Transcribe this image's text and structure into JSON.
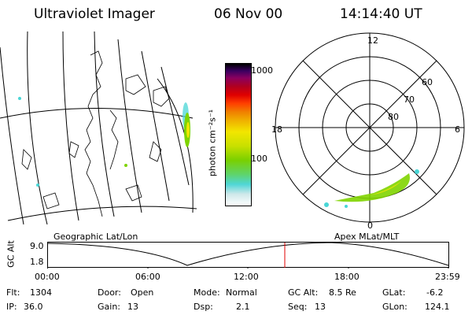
{
  "header": {
    "instrument": "Ultraviolet Imager",
    "date": "06 Nov 00",
    "time": "14:14:40 UT"
  },
  "colorbar": {
    "unit_label": "photon cm⁻²s⁻¹",
    "ticks": [
      "1000",
      "100"
    ]
  },
  "polar_plot": {
    "mlt_labels": [
      "12",
      "18",
      "6",
      "0"
    ],
    "lat_labels": [
      "60",
      "70",
      "80"
    ]
  },
  "timeline": {
    "left_caption": "Geographic Lat/Lon",
    "right_caption": "Apex MLat/MLT",
    "axis_label": "GC Alt",
    "y_ticks": [
      "9.0",
      "1.8"
    ],
    "x_ticks": [
      "00:00",
      "06:00",
      "12:00",
      "18:00",
      "23:59"
    ]
  },
  "info": {
    "row1": [
      {
        "label": "Flt:",
        "value": "1304"
      },
      {
        "label": "Door:",
        "value": "Open"
      },
      {
        "label": "Mode:",
        "value": "Normal"
      },
      {
        "label": "GC Alt:",
        "value": "8.5 Re"
      },
      {
        "label": "GLat:",
        "value": "-6.2"
      }
    ],
    "row2": [
      {
        "label": "IP:",
        "value": "36.0"
      },
      {
        "label": "Gain:",
        "value": "13"
      },
      {
        "label": "Dsp:",
        "value": "2.1"
      },
      {
        "label": "Seq:",
        "value": "13"
      },
      {
        "label": "GLon:",
        "value": "124.1"
      }
    ]
  },
  "colors": {
    "line": "#000000",
    "marker": "#e00000",
    "aurora_green": "#7fd400",
    "aurora_yellow": "#f2e600",
    "aurora_cyan": "#49d6d6"
  }
}
